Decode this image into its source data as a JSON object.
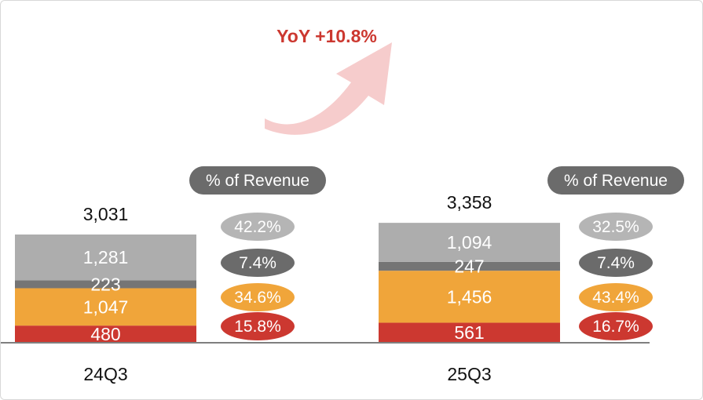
{
  "yoy_label": "YoY +10.8%",
  "pct_header": "% of Revenue",
  "colors": {
    "seg_gray": "#adadad",
    "seg_dark": "#757575",
    "seg_orange": "#f0a53a",
    "seg_red": "#cc3830",
    "yoy_red": "#cc3830",
    "arrow_pink": "#f6cccc",
    "pill_light": "#b5b5b5",
    "pill_dark": "#6b6b6b",
    "axis": "#7f7f7f"
  },
  "chart_data": {
    "type": "bar",
    "stacked": true,
    "categories": [
      "24Q3",
      "25Q3"
    ],
    "series": [
      {
        "values": [
          480,
          561
        ],
        "color": "#cc3830"
      },
      {
        "values": [
          1047,
          1456
        ],
        "color": "#f0a53a"
      },
      {
        "values": [
          223,
          247
        ],
        "color": "#757575"
      },
      {
        "values": [
          1281,
          1094
        ],
        "color": "#adadad"
      }
    ],
    "value_labels": [
      [
        "480",
        "561"
      ],
      [
        "1,047",
        "1,456"
      ],
      [
        "223",
        "247"
      ],
      [
        "1,281",
        "1,094"
      ]
    ],
    "totals": [
      3031,
      3358
    ],
    "total_labels": [
      "3,031",
      "3,358"
    ],
    "pct_of_revenue": [
      [
        "15.8%",
        "16.7%"
      ],
      [
        "34.6%",
        "43.4%"
      ],
      [
        "7.4%",
        "7.4%"
      ],
      [
        "42.2%",
        "32.5%"
      ]
    ],
    "title": "",
    "xlabel": "",
    "ylabel": "",
    "annotation": "YoY +10.8%",
    "grid": false
  }
}
